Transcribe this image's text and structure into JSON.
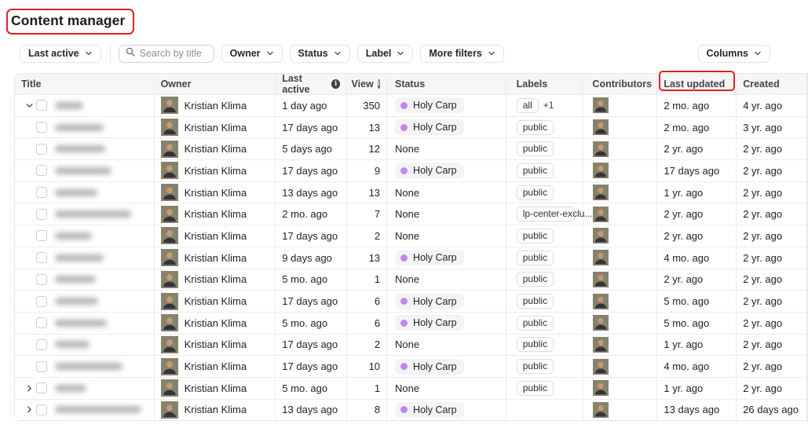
{
  "page": {
    "title": "Content manager"
  },
  "toolbar": {
    "sort_button": "Last active",
    "search_placeholder": "Search by title",
    "filter_buttons": [
      "Owner",
      "Status",
      "Label",
      "More filters"
    ],
    "columns_button": "Columns"
  },
  "icons": {
    "search": "magnifier",
    "info": "i",
    "chevron_down": "expand-open",
    "chevron_right": "expand-closed"
  },
  "colors": {
    "annotation_red": "#dd2323",
    "status_dot_purple": "#c585f0",
    "header_bg": "#f6f6f7"
  },
  "table": {
    "headers": {
      "title": "Title",
      "owner": "Owner",
      "last_active": "Last active",
      "view": "View",
      "status": "Status",
      "labels": "Labels",
      "contributors": "Contributors",
      "last_updated": "Last updated",
      "created": "Created"
    },
    "status_none_text": "None",
    "rows": [
      {
        "expander": "down",
        "title_redacted_width": 36,
        "owner": "Kristian Klima",
        "last_active": "1 day ago",
        "views": "350",
        "status": "Holy Carp",
        "labels": [
          "all"
        ],
        "labels_extra": "+1",
        "contributors": 1,
        "last_updated": "2 mo. ago",
        "created": "4 yr. ago"
      },
      {
        "expander": "none",
        "title_redacted_width": 62,
        "owner": "Kristian Klima",
        "last_active": "17 days ago",
        "views": "13",
        "status": "Holy Carp",
        "labels": [
          "public"
        ],
        "contributors": 1,
        "last_updated": "2 mo. ago",
        "created": "3 yr. ago"
      },
      {
        "expander": "none",
        "title_redacted_width": 64,
        "owner": "Kristian Klima",
        "last_active": "5 days ago",
        "views": "12",
        "status": "None",
        "labels": [
          "public"
        ],
        "contributors": 1,
        "last_updated": "2 yr. ago",
        "created": "2 yr. ago"
      },
      {
        "expander": "none",
        "title_redacted_width": 72,
        "owner": "Kristian Klima",
        "last_active": "17 days ago",
        "views": "9",
        "status": "Holy Carp",
        "labels": [
          "public"
        ],
        "contributors": 1,
        "last_updated": "17 days ago",
        "created": "2 yr. ago"
      },
      {
        "expander": "none",
        "title_redacted_width": 54,
        "owner": "Kristian Klima",
        "last_active": "13 days ago",
        "views": "13",
        "status": "None",
        "labels": [
          "public"
        ],
        "contributors": 1,
        "last_updated": "1 yr. ago",
        "created": "2 yr. ago"
      },
      {
        "expander": "none",
        "title_redacted_width": 97,
        "owner": "Kristian Klima",
        "last_active": "2 mo. ago",
        "views": "7",
        "status": "None",
        "labels": [
          "lp-center-exclu..."
        ],
        "contributors": 1,
        "last_updated": "2 yr. ago",
        "created": "2 yr. ago"
      },
      {
        "expander": "none",
        "title_redacted_width": 47,
        "owner": "Kristian Klima",
        "last_active": "17 days ago",
        "views": "2",
        "status": "None",
        "labels": [
          "public"
        ],
        "contributors": 1,
        "last_updated": "2 yr. ago",
        "created": "2 yr. ago"
      },
      {
        "expander": "none",
        "title_redacted_width": 62,
        "owner": "Kristian Klima",
        "last_active": "9 days ago",
        "views": "13",
        "status": "Holy Carp",
        "labels": [
          "public"
        ],
        "contributors": 1,
        "last_updated": "4 mo. ago",
        "created": "2 yr. ago"
      },
      {
        "expander": "none",
        "title_redacted_width": 52,
        "owner": "Kristian Klima",
        "last_active": "5 mo. ago",
        "views": "1",
        "status": "None",
        "labels": [
          "public"
        ],
        "contributors": 1,
        "last_updated": "2 yr. ago",
        "created": "2 yr. ago"
      },
      {
        "expander": "none",
        "title_redacted_width": 55,
        "owner": "Kristian Klima",
        "last_active": "17 days ago",
        "views": "6",
        "status": "Holy Carp",
        "labels": [
          "public"
        ],
        "contributors": 1,
        "last_updated": "5 mo. ago",
        "created": "2 yr. ago"
      },
      {
        "expander": "none",
        "title_redacted_width": 66,
        "owner": "Kristian Klima",
        "last_active": "5 mo. ago",
        "views": "6",
        "status": "Holy Carp",
        "labels": [
          "public"
        ],
        "contributors": 1,
        "last_updated": "5 mo. ago",
        "created": "2 yr. ago"
      },
      {
        "expander": "none",
        "title_redacted_width": 44,
        "owner": "Kristian Klima",
        "last_active": "17 days ago",
        "views": "2",
        "status": "None",
        "labels": [
          "public"
        ],
        "contributors": 1,
        "last_updated": "1 yr. ago",
        "created": "2 yr. ago"
      },
      {
        "expander": "none",
        "title_redacted_width": 86,
        "owner": "Kristian Klima",
        "last_active": "17 days ago",
        "views": "10",
        "status": "Holy Carp",
        "labels": [
          "public"
        ],
        "contributors": 1,
        "last_updated": "4 mo. ago",
        "created": "2 yr. ago"
      },
      {
        "expander": "right",
        "title_redacted_width": 40,
        "owner": "Kristian Klima",
        "last_active": "5 mo. ago",
        "views": "1",
        "status": "None",
        "labels": [
          "public"
        ],
        "contributors": 1,
        "last_updated": "1 yr. ago",
        "created": "2 yr. ago"
      },
      {
        "expander": "right",
        "title_redacted_width": 110,
        "owner": "Kristian Klima",
        "last_active": "13 days ago",
        "views": "8",
        "status": "Holy Carp",
        "labels": [],
        "contributors": 1,
        "last_updated": "13 days ago",
        "created": "26 days ago"
      }
    ]
  }
}
